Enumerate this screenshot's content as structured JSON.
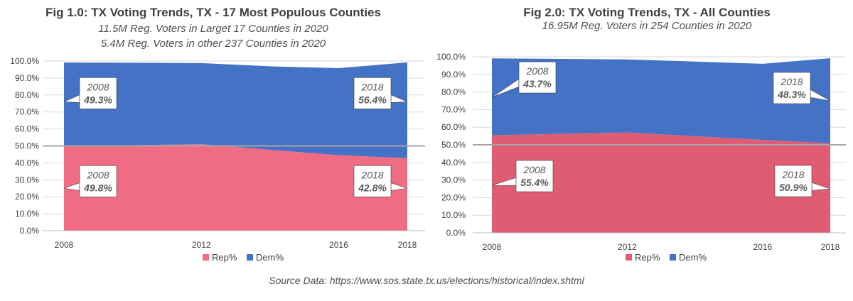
{
  "source": "Source Data: https://www.sos.state.tx.us/elections/historical/index.shtml",
  "chart_data": [
    {
      "type": "area",
      "stacked": true,
      "title": "Fig 1.0: TX Voting Trends, TX - 17 Most Populous Counties",
      "subtitle": [
        "11.5M Reg. Voters in Larget 17 Counties in 2020",
        "5.4M Reg. Voters in other 237 Counties in 2020"
      ],
      "x": [
        2008,
        2010,
        2012,
        2014,
        2016,
        2018
      ],
      "xticks": [
        "2008",
        "2012",
        "2016",
        "2018"
      ],
      "yticks": [
        "0.0%",
        "10.0%",
        "20.0%",
        "30.0%",
        "40.0%",
        "50.0%",
        "60.0%",
        "70.0%",
        "80.0%",
        "90.0%",
        "100.0%"
      ],
      "ylim": [
        0,
        100
      ],
      "grid": true,
      "legend": "bottom",
      "series": [
        {
          "name": "Rep%",
          "color": "#f06b84",
          "values": [
            49.8,
            50.4,
            51.0,
            47.7,
            44.5,
            42.8
          ]
        },
        {
          "name": "Dem%",
          "color": "#4472c4",
          "values": [
            49.3,
            48.6,
            47.8,
            49.2,
            51.3,
            56.4
          ]
        }
      ],
      "annotations": [
        {
          "series": "Dem%",
          "year": "2008",
          "value": "49.3%"
        },
        {
          "series": "Dem%",
          "year": "2018",
          "value": "56.4%"
        },
        {
          "series": "Rep%",
          "year": "2008",
          "value": "49.8%"
        },
        {
          "series": "Rep%",
          "year": "2018",
          "value": "42.8%"
        }
      ]
    },
    {
      "type": "area",
      "stacked": true,
      "title": "Fig 2.0: TX Voting Trends, TX - All Counties",
      "subtitle": [
        "16.95M Reg. Voters in 254 Counties in 2020"
      ],
      "x": [
        2008,
        2010,
        2012,
        2014,
        2016,
        2018
      ],
      "xticks": [
        "2008",
        "2012",
        "2016",
        "2018"
      ],
      "yticks": [
        "0.0%",
        "10.0%",
        "20.0%",
        "30.0%",
        "40.0%",
        "50.0%",
        "60.0%",
        "70.0%",
        "80.0%",
        "90.0%",
        "100.0%"
      ],
      "ylim": [
        0,
        100
      ],
      "grid": true,
      "legend": "bottom",
      "series": [
        {
          "name": "Rep%",
          "color": "#e05c72",
          "values": [
            55.4,
            56.2,
            57.0,
            54.9,
            52.8,
            50.9
          ]
        },
        {
          "name": "Dem%",
          "color": "#4472c4",
          "values": [
            43.7,
            42.6,
            41.5,
            42.4,
            43.2,
            48.3
          ]
        }
      ],
      "annotations": [
        {
          "series": "Dem%",
          "year": "2008",
          "value": "43.7%"
        },
        {
          "series": "Dem%",
          "year": "2018",
          "value": "48.3%"
        },
        {
          "series": "Rep%",
          "year": "2008",
          "value": "55.4%"
        },
        {
          "series": "Rep%",
          "year": "2018",
          "value": "50.9%"
        }
      ]
    }
  ]
}
